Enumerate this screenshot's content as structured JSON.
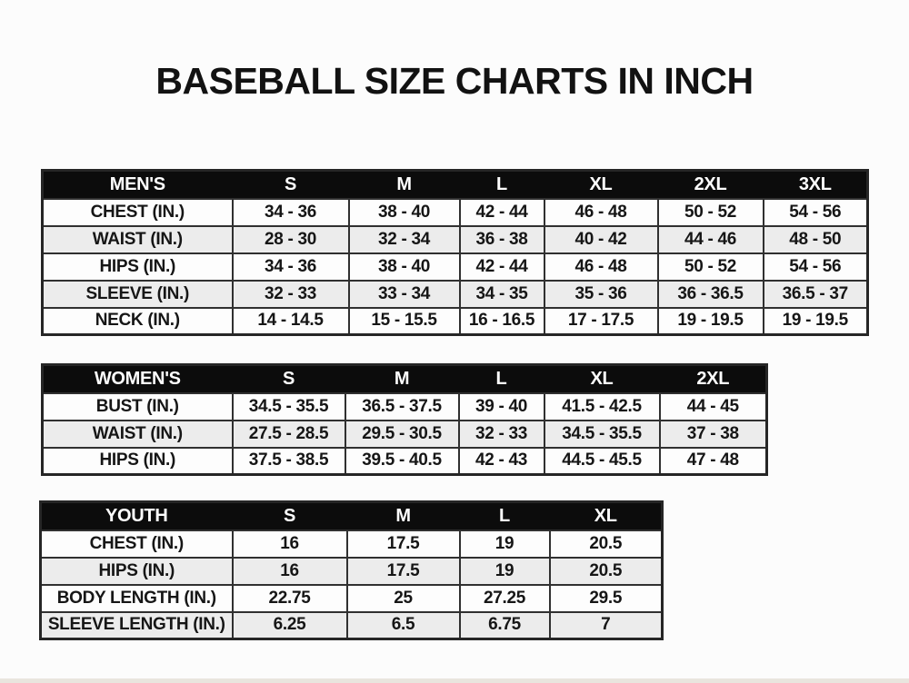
{
  "page": {
    "title": "BASEBALL SIZE CHARTS IN INCH"
  },
  "colors": {
    "page_bg": "#fcfcfc",
    "header_bg": "#0c0c0c",
    "header_text": "#ffffff",
    "row_stripe_bg": "#ececec",
    "row_bg": "#fdfdfd",
    "border": "#303030",
    "text": "#161616"
  },
  "chart_data": [
    {
      "type": "table",
      "title": "MEN'S",
      "columns": [
        "MEN'S",
        "S",
        "M",
        "L",
        "XL",
        "2XL",
        "3XL"
      ],
      "rows": [
        [
          "CHEST (IN.)",
          "34 - 36",
          "38 - 40",
          "42 - 44",
          "46 - 48",
          "50 - 52",
          "54 - 56"
        ],
        [
          "WAIST (IN.)",
          "28 - 30",
          "32 - 34",
          "36 - 38",
          "40 - 42",
          "44 - 46",
          "48 - 50"
        ],
        [
          "HIPS (IN.)",
          "34 - 36",
          "38 - 40",
          "42 - 44",
          "46 - 48",
          "50 - 52",
          "54 - 56"
        ],
        [
          "SLEEVE (IN.)",
          "32 - 33",
          "33 - 34",
          "34 - 35",
          "35 - 36",
          "36 - 36.5",
          "36.5 - 37"
        ],
        [
          "NECK (IN.)",
          "14 - 14.5",
          "15 - 15.5",
          "16 - 16.5",
          "17 - 17.5",
          "19 - 19.5",
          "19 - 19.5"
        ]
      ]
    },
    {
      "type": "table",
      "title": "WOMEN'S",
      "columns": [
        "WOMEN'S",
        "S",
        "M",
        "L",
        "XL",
        "2XL"
      ],
      "rows": [
        [
          "BUST (IN.)",
          "34.5 - 35.5",
          "36.5 - 37.5",
          "39 - 40",
          "41.5 - 42.5",
          "44 - 45"
        ],
        [
          "WAIST (IN.)",
          "27.5 - 28.5",
          "29.5 - 30.5",
          "32 - 33",
          "34.5 - 35.5",
          "37 - 38"
        ],
        [
          "HIPS (IN.)",
          "37.5 - 38.5",
          "39.5 - 40.5",
          "42 - 43",
          "44.5 - 45.5",
          "47 - 48"
        ]
      ]
    },
    {
      "type": "table",
      "title": "YOUTH",
      "columns": [
        "YOUTH",
        "S",
        "M",
        "L",
        "XL"
      ],
      "rows": [
        [
          "CHEST (IN.)",
          "16",
          "17.5",
          "19",
          "20.5"
        ],
        [
          "HIPS (IN.)",
          "16",
          "17.5",
          "19",
          "20.5"
        ],
        [
          "BODY LENGTH (IN.)",
          "22.75",
          "25",
          "27.25",
          "29.5"
        ],
        [
          "SLEEVE LENGTH (IN.)",
          "6.25",
          "6.5",
          "6.75",
          "7"
        ]
      ]
    }
  ]
}
